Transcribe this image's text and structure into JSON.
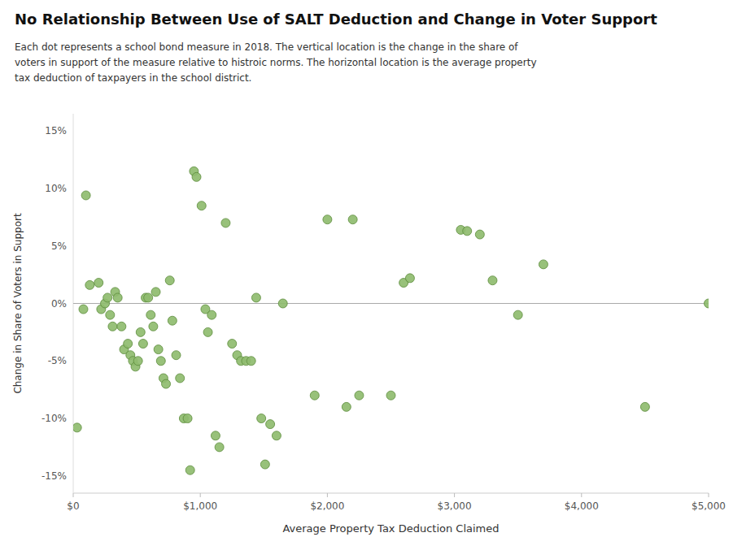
{
  "chart_data": {
    "type": "scatter",
    "title": "No Relationship Between Use of SALT Deduction and Change in Voter Support",
    "subtitle": "Each dot represents a school bond measure in 2018. The vertical location is the change in the share of\nvoters in support of the measure relative to histroic norms. The horizontal location is the average property\ntax deduction of taxpayers in the school district.",
    "xlabel": "Average Property Tax Deduction Claimed",
    "ylabel": "Change in Share of Voters in Support",
    "xlim": [
      0,
      5000
    ],
    "ylim": [
      -0.165,
      0.165
    ],
    "xticks": [
      {
        "value": 0,
        "label": "$0"
      },
      {
        "value": 1000,
        "label": "$1,000"
      },
      {
        "value": 2000,
        "label": "$2,000"
      },
      {
        "value": 3000,
        "label": "$3,000"
      },
      {
        "value": 4000,
        "label": "$4,000"
      },
      {
        "value": 5000,
        "label": "$5,000"
      }
    ],
    "yticks": [
      {
        "value": -0.15,
        "label": "-15%"
      },
      {
        "value": -0.1,
        "label": "-10%"
      },
      {
        "value": -0.05,
        "label": "-5%"
      },
      {
        "value": 0.0,
        "label": "0%"
      },
      {
        "value": 0.05,
        "label": "5%"
      },
      {
        "value": 0.1,
        "label": "10%"
      },
      {
        "value": 0.15,
        "label": "15%"
      }
    ],
    "grid": false,
    "color": "#8fbc6f",
    "x": [
      30,
      80,
      100,
      130,
      200,
      220,
      250,
      270,
      290,
      310,
      330,
      350,
      380,
      400,
      430,
      450,
      470,
      490,
      510,
      530,
      550,
      570,
      590,
      610,
      630,
      650,
      670,
      690,
      710,
      730,
      760,
      780,
      810,
      840,
      870,
      900,
      920,
      950,
      970,
      1010,
      1040,
      1060,
      1090,
      1120,
      1150,
      1200,
      1250,
      1290,
      1320,
      1360,
      1400,
      1440,
      1480,
      1510,
      1550,
      1600,
      1650,
      1900,
      2000,
      2150,
      2200,
      2250,
      2500,
      2600,
      2650,
      3050,
      3100,
      3200,
      3300,
      3500,
      3700,
      4500,
      5000
    ],
    "values": [
      -0.108,
      -0.005,
      0.094,
      0.016,
      0.018,
      -0.005,
      0.0,
      0.005,
      -0.01,
      -0.02,
      0.01,
      0.005,
      -0.02,
      -0.04,
      -0.035,
      -0.045,
      -0.05,
      -0.055,
      -0.05,
      -0.025,
      -0.035,
      0.005,
      0.005,
      -0.01,
      -0.02,
      0.01,
      -0.04,
      -0.05,
      -0.065,
      -0.07,
      0.02,
      -0.015,
      -0.045,
      -0.065,
      -0.1,
      -0.1,
      -0.145,
      0.115,
      0.11,
      0.085,
      -0.005,
      -0.025,
      -0.01,
      -0.115,
      -0.125,
      0.07,
      -0.035,
      -0.045,
      -0.05,
      -0.05,
      -0.05,
      0.005,
      -0.1,
      -0.14,
      -0.105,
      -0.115,
      0.0,
      -0.08,
      0.073,
      -0.09,
      0.073,
      -0.08,
      -0.08,
      0.018,
      0.022,
      0.064,
      0.063,
      0.06,
      0.02,
      -0.01,
      0.034,
      -0.09,
      0.0
    ]
  }
}
